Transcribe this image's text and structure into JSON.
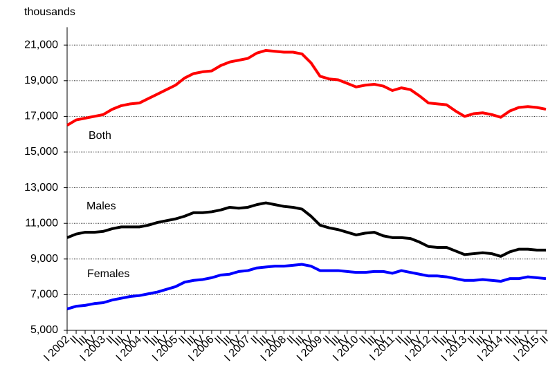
{
  "chart_data": {
    "type": "line",
    "y_label": "thousands",
    "categories": [
      "I 2002",
      "II",
      "III",
      "IV",
      "I 2003",
      "II",
      "III",
      "IV",
      "I 2004",
      "II",
      "III",
      "IV",
      "I 2005",
      "II",
      "III",
      "IV",
      "I 2006",
      "II",
      "III",
      "IV",
      "I 2007",
      "II",
      "III",
      "IV",
      "I 2008",
      "II",
      "III",
      "IV",
      "I 2009",
      "II",
      "III",
      "IV",
      "I 2010",
      "II",
      "III",
      "IV",
      "I 2011",
      "II",
      "III",
      "IV",
      "I 2012",
      "II",
      "III",
      "IV",
      "I 2013",
      "II",
      "III",
      "IV",
      "I 2014",
      "II",
      "III",
      "IV",
      "I 2015",
      "II"
    ],
    "series": [
      {
        "name": "Both",
        "color": "#ff0000",
        "values": [
          16500,
          16800,
          16900,
          17000,
          17100,
          17400,
          17600,
          17700,
          17750,
          18000,
          18250,
          18500,
          18750,
          19150,
          19400,
          19500,
          19550,
          19850,
          20050,
          20150,
          20250,
          20550,
          20700,
          20650,
          20600,
          20600,
          20500,
          20000,
          19250,
          19100,
          19050,
          18850,
          18650,
          18750,
          18800,
          18700,
          18450,
          18600,
          18500,
          18150,
          17750,
          17700,
          17650,
          17300,
          17000,
          17150,
          17200,
          17100,
          16950,
          17300,
          17500,
          17550,
          17500,
          17400
        ]
      },
      {
        "name": "Males",
        "color": "#000000",
        "values": [
          10200,
          10400,
          10500,
          10500,
          10550,
          10700,
          10800,
          10800,
          10800,
          10900,
          11050,
          11150,
          11250,
          11400,
          11600,
          11600,
          11650,
          11750,
          11900,
          11850,
          11900,
          12050,
          12150,
          12050,
          11950,
          11900,
          11800,
          11400,
          10900,
          10750,
          10650,
          10500,
          10350,
          10450,
          10500,
          10300,
          10200,
          10200,
          10150,
          9950,
          9700,
          9650,
          9650,
          9450,
          9250,
          9300,
          9350,
          9300,
          9150,
          9400,
          9550,
          9550,
          9500,
          9500
        ]
      },
      {
        "name": "Females",
        "color": "#0000ff",
        "values": [
          6200,
          6350,
          6400,
          6500,
          6550,
          6700,
          6800,
          6900,
          6950,
          7050,
          7150,
          7300,
          7450,
          7700,
          7800,
          7850,
          7950,
          8100,
          8150,
          8300,
          8350,
          8500,
          8550,
          8600,
          8600,
          8650,
          8700,
          8600,
          8350,
          8350,
          8350,
          8300,
          8250,
          8250,
          8300,
          8300,
          8200,
          8350,
          8250,
          8150,
          8050,
          8050,
          8000,
          7900,
          7800,
          7800,
          7850,
          7800,
          7750,
          7900,
          7900,
          8000,
          7950,
          7900
        ]
      }
    ],
    "ylim": [
      5000,
      22000
    ],
    "yticks": [
      {
        "value": 5000,
        "label": "5,000"
      },
      {
        "value": 7000,
        "label": "7,000"
      },
      {
        "value": 9000,
        "label": "9,000"
      },
      {
        "value": 11000,
        "label": "11,000"
      },
      {
        "value": 13000,
        "label": "13,000"
      },
      {
        "value": 15000,
        "label": "15,000"
      },
      {
        "value": 17000,
        "label": "17,000"
      },
      {
        "value": 19000,
        "label": "19,000"
      },
      {
        "value": 21000,
        "label": "21,000"
      }
    ],
    "grid": true
  }
}
